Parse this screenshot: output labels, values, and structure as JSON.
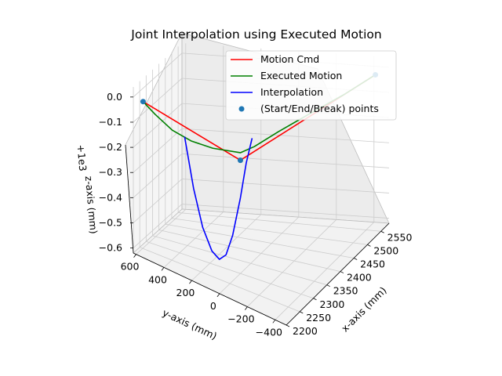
{
  "chart_data": {
    "type": "line",
    "projection": "3d",
    "title": "Joint Interpolation using Executed Motion",
    "xlabel": "x-axis (mm)",
    "ylabel": "y-axis (mm)",
    "zlabel": "z-axis (mm)",
    "z_offset_label": "+1e3",
    "xlim": [
      2200,
      2580
    ],
    "ylim": [
      -480,
      620
    ],
    "zlim": [
      -0.62,
      0.04
    ],
    "x_ticks": [
      "2200",
      "2250",
      "2300",
      "2350",
      "2400",
      "2450",
      "2500",
      "2550"
    ],
    "y_ticks": [
      "−400",
      "−200",
      "0",
      "200",
      "400",
      "600"
    ],
    "z_ticks": [
      "−0.6",
      "−0.5",
      "−0.4",
      "−0.3",
      "−0.2",
      "−0.1",
      "0.0"
    ],
    "grid": true,
    "legend_position": "upper right",
    "series": [
      {
        "name": "Motion Cmd",
        "color": "#ff0000",
        "kind": "line",
        "points": [
          [
            2200,
            550,
            0.0
          ],
          [
            2300,
            0,
            -0.17
          ],
          [
            2550,
            -450,
            0.0
          ]
        ]
      },
      {
        "name": "Executed Motion",
        "color": "#008000",
        "kind": "line",
        "points": [
          [
            2200,
            550,
            0.0
          ],
          [
            2215,
            480,
            -0.04
          ],
          [
            2235,
            380,
            -0.09
          ],
          [
            2255,
            270,
            -0.12
          ],
          [
            2275,
            150,
            -0.135
          ],
          [
            2300,
            0,
            -0.14
          ],
          [
            2330,
            -50,
            -0.13
          ],
          [
            2380,
            -130,
            -0.1
          ],
          [
            2440,
            -230,
            -0.07
          ],
          [
            2500,
            -350,
            -0.035
          ],
          [
            2550,
            -450,
            0.0
          ]
        ]
      },
      {
        "name": "Interpolation",
        "color": "#0000ff",
        "kind": "line",
        "points": [
          [
            2240,
            300,
            -0.1
          ],
          [
            2250,
            250,
            -0.3
          ],
          [
            2260,
            200,
            -0.45
          ],
          [
            2270,
            150,
            -0.54
          ],
          [
            2278,
            110,
            -0.57
          ],
          [
            2285,
            75,
            -0.55
          ],
          [
            2292,
            40,
            -0.47
          ],
          [
            2300,
            0,
            -0.32
          ],
          [
            2306,
            -30,
            -0.18
          ],
          [
            2312,
            -60,
            -0.08
          ]
        ]
      },
      {
        "name": "(Start/End/Break) points",
        "color": "#1f77b4",
        "kind": "scatter",
        "points": [
          [
            2200,
            550,
            0.0
          ],
          [
            2300,
            0,
            -0.17
          ],
          [
            2550,
            -450,
            0.0
          ]
        ]
      }
    ]
  }
}
